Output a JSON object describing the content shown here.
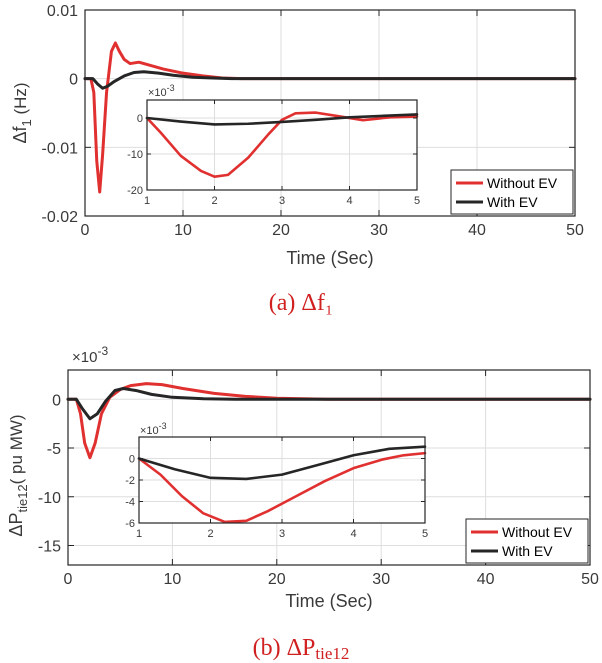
{
  "captions": {
    "a": "(a) Δf₁",
    "b_main": "(b) ΔP",
    "b_sub": "tie12"
  },
  "colors": {
    "without": "#e03030",
    "with": "#262626",
    "axis": "#262626",
    "grid": "#dedede"
  },
  "chart_data": [
    {
      "type": "line",
      "title": "",
      "xlabel": "Time (Sec)",
      "ylabel_main": "Δf",
      "ylabel_sub": "1",
      "ylabel_unit": "(Hz)",
      "xlim": [
        0,
        50
      ],
      "ylim": [
        -0.02,
        0.01
      ],
      "xticks": [
        0,
        10,
        20,
        30,
        40,
        50
      ],
      "xtick_labels": [
        "0",
        "10",
        "20",
        "30",
        "40",
        "50"
      ],
      "yticks": [
        -0.02,
        -0.01,
        0,
        0.01
      ],
      "ytick_labels": [
        "-0.02",
        "-0.01",
        "0",
        "0.01"
      ],
      "grid": true,
      "legend": "bottom-right",
      "series": [
        {
          "name": "Without EV",
          "color": "#e03030",
          "points": [
            [
              0,
              0
            ],
            [
              0.6,
              0
            ],
            [
              0.9,
              -0.002
            ],
            [
              1.2,
              -0.012
            ],
            [
              1.5,
              -0.0165
            ],
            [
              1.8,
              -0.011
            ],
            [
              2.2,
              -0.002
            ],
            [
              2.7,
              0.004
            ],
            [
              3.1,
              0.0052
            ],
            [
              3.5,
              0.004
            ],
            [
              4.0,
              0.0028
            ],
            [
              4.6,
              0.0022
            ],
            [
              5.5,
              0.0024
            ],
            [
              6.5,
              0.002
            ],
            [
              8,
              0.0014
            ],
            [
              10,
              0.0008
            ],
            [
              12,
              0.0004
            ],
            [
              14,
              0.0001
            ],
            [
              16,
              0
            ],
            [
              20,
              0
            ],
            [
              30,
              0
            ],
            [
              40,
              0
            ],
            [
              50,
              0
            ]
          ]
        },
        {
          "name": "With EV",
          "color": "#262626",
          "points": [
            [
              0,
              0
            ],
            [
              0.8,
              0
            ],
            [
              1.3,
              -0.0008
            ],
            [
              1.8,
              -0.0014
            ],
            [
              2.3,
              -0.0011
            ],
            [
              3,
              -0.0004
            ],
            [
              4,
              0.0004
            ],
            [
              5,
              0.0009
            ],
            [
              6,
              0.001
            ],
            [
              7.5,
              0.0008
            ],
            [
              9,
              0.0005
            ],
            [
              11,
              0.0002
            ],
            [
              13,
              0.0001
            ],
            [
              15,
              0
            ],
            [
              20,
              0
            ],
            [
              30,
              0
            ],
            [
              40,
              0
            ],
            [
              50,
              0
            ]
          ]
        }
      ],
      "inset": {
        "xlim": [
          1,
          5
        ],
        "ylim": [
          -20,
          5
        ],
        "xticks": [
          1,
          2,
          3,
          4,
          5
        ],
        "xtick_labels": [
          "1",
          "2",
          "3",
          "4",
          "5"
        ],
        "yticks": [
          -20,
          -10,
          0
        ],
        "ytick_labels": [
          "-20",
          "-10",
          "0"
        ],
        "multiplier_base": "×10",
        "multiplier_exp": "-3",
        "grid": true,
        "series": [
          {
            "name": "Without EV",
            "points": [
              [
                1,
                0
              ],
              [
                1.2,
                -4
              ],
              [
                1.5,
                -10.5
              ],
              [
                1.8,
                -14.7
              ],
              [
                2.0,
                -16.3
              ],
              [
                2.2,
                -15.8
              ],
              [
                2.5,
                -11
              ],
              [
                2.8,
                -4.5
              ],
              [
                3.0,
                -0.5
              ],
              [
                3.2,
                1.3
              ],
              [
                3.5,
                1.5
              ],
              [
                3.8,
                0.6
              ],
              [
                4.2,
                -0.6
              ],
              [
                4.6,
                0.2
              ],
              [
                5,
                0.4
              ]
            ]
          },
          {
            "name": "With EV",
            "points": [
              [
                1,
                0
              ],
              [
                1.5,
                -1
              ],
              [
                2,
                -1.8
              ],
              [
                2.5,
                -1.6
              ],
              [
                3,
                -1.1
              ],
              [
                3.5,
                -0.5
              ],
              [
                4,
                0.2
              ],
              [
                4.5,
                0.6
              ],
              [
                5,
                1
              ]
            ]
          }
        ]
      }
    },
    {
      "type": "line",
      "title": "",
      "xlabel": "Time (Sec)",
      "ylabel_main": "ΔP",
      "ylabel_sub": "tie12",
      "ylabel_unit": "( pu MW)",
      "multiplier_base": "×10",
      "multiplier_exp": "-3",
      "xlim": [
        0,
        50
      ],
      "ylim": [
        -17,
        3
      ],
      "xticks": [
        0,
        10,
        20,
        30,
        40,
        50
      ],
      "xtick_labels": [
        "0",
        "10",
        "20",
        "30",
        "40",
        "50"
      ],
      "yticks": [
        -15,
        -10,
        -5,
        0
      ],
      "ytick_labels": [
        "-15",
        "-10",
        "-5",
        "0"
      ],
      "grid": true,
      "legend": "bottom-right",
      "series": [
        {
          "name": "Without EV",
          "color": "#e03030",
          "points": [
            [
              0,
              0
            ],
            [
              0.8,
              0
            ],
            [
              1.2,
              -1.5
            ],
            [
              1.6,
              -4.5
            ],
            [
              2.1,
              -6
            ],
            [
              2.6,
              -4.5
            ],
            [
              3.2,
              -1.5
            ],
            [
              4,
              0.2
            ],
            [
              5,
              1
            ],
            [
              6,
              1.4
            ],
            [
              7.5,
              1.6
            ],
            [
              9,
              1.5
            ],
            [
              11,
              1.1
            ],
            [
              14,
              0.6
            ],
            [
              17,
              0.3
            ],
            [
              20,
              0.1
            ],
            [
              25,
              0
            ],
            [
              30,
              0
            ],
            [
              40,
              0
            ],
            [
              50,
              0
            ]
          ]
        },
        {
          "name": "With EV",
          "color": "#262626",
          "points": [
            [
              0,
              0
            ],
            [
              0.8,
              0
            ],
            [
              1.4,
              -1
            ],
            [
              2.1,
              -2
            ],
            [
              2.8,
              -1.5
            ],
            [
              3.6,
              -0.2
            ],
            [
              4.5,
              0.9
            ],
            [
              5.3,
              1.1
            ],
            [
              6.5,
              0.9
            ],
            [
              8,
              0.5
            ],
            [
              10,
              0.2
            ],
            [
              13,
              0.05
            ],
            [
              16,
              0
            ],
            [
              20,
              0
            ],
            [
              30,
              0
            ],
            [
              40,
              0
            ],
            [
              50,
              0
            ]
          ]
        }
      ],
      "inset": {
        "xlim": [
          1,
          5
        ],
        "ylim": [
          -6,
          2
        ],
        "xticks": [
          1,
          2,
          3,
          4,
          5
        ],
        "xtick_labels": [
          "1",
          "2",
          "3",
          "4",
          "5"
        ],
        "yticks": [
          -6,
          -4,
          -2,
          0
        ],
        "ytick_labels": [
          "-6",
          "-4",
          "-2",
          "0"
        ],
        "multiplier_base": "×10",
        "multiplier_exp": "-3",
        "grid": true,
        "series": [
          {
            "name": "Without EV",
            "points": [
              [
                1,
                0
              ],
              [
                1.3,
                -1.5
              ],
              [
                1.6,
                -3.5
              ],
              [
                1.9,
                -5.1
              ],
              [
                2.2,
                -5.9
              ],
              [
                2.5,
                -5.8
              ],
              [
                2.8,
                -4.9
              ],
              [
                3.2,
                -3.5
              ],
              [
                3.6,
                -2.1
              ],
              [
                4.0,
                -0.9
              ],
              [
                4.4,
                -0.1
              ],
              [
                4.7,
                0.3
              ],
              [
                5,
                0.5
              ]
            ]
          },
          {
            "name": "With EV",
            "points": [
              [
                1,
                0
              ],
              [
                1.5,
                -1
              ],
              [
                2,
                -1.8
              ],
              [
                2.5,
                -1.9
              ],
              [
                3,
                -1.5
              ],
              [
                3.5,
                -0.6
              ],
              [
                4,
                0.3
              ],
              [
                4.5,
                0.9
              ],
              [
                5,
                1.1
              ]
            ]
          }
        ]
      }
    }
  ]
}
